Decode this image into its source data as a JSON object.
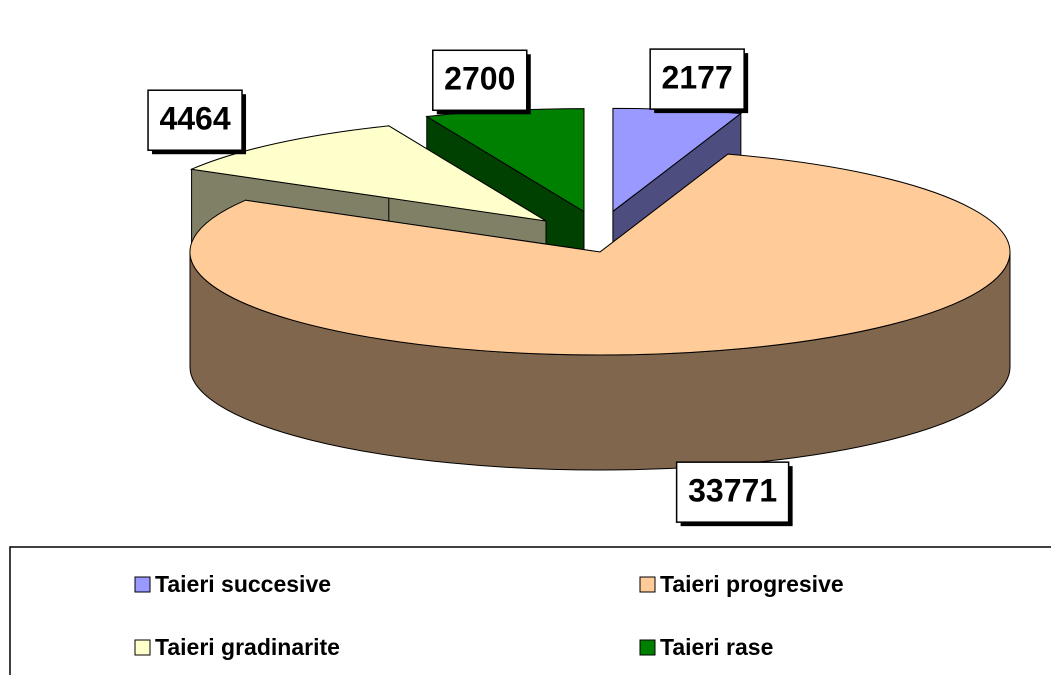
{
  "chart_data": {
    "type": "pie3d",
    "categories": [
      "Taieri succesive",
      "Taieri progresive",
      "Taieri gradinarite",
      "Taieri rase"
    ],
    "values": [
      2177,
      33771,
      4464,
      2700
    ],
    "colors": [
      "#9999ff",
      "#ffcc99",
      "#ffffcc",
      "#008000"
    ],
    "legend": "bottom"
  }
}
